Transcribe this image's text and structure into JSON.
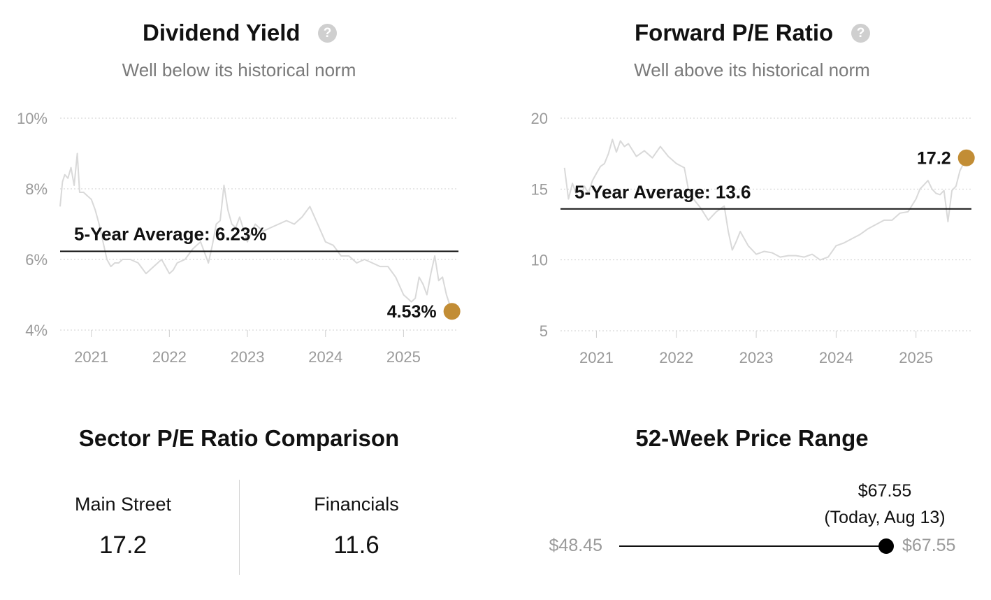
{
  "colors": {
    "accent": "#C28D35",
    "history_line": "#d9d9d9",
    "grid": "#cfcfcf",
    "muted": "#9a9a9a"
  },
  "icons": {
    "help": "question-circle-icon"
  },
  "help_glyph": "?",
  "dividend": {
    "title": "Dividend Yield",
    "subtitle": "Well below its historical norm",
    "average_label": "5-Year Average: 6.23%",
    "current_label": "4.53%"
  },
  "pe": {
    "title": "Forward P/E Ratio",
    "subtitle": "Well above its historical norm",
    "average_label": "5-Year Average: 13.6",
    "current_label": "17.2"
  },
  "sector": {
    "title": "Sector P/E Ratio Comparison",
    "items": [
      {
        "name": "Main Street",
        "value": "17.2"
      },
      {
        "name": "Financials",
        "value": "11.6"
      }
    ]
  },
  "range52": {
    "title": "52-Week Price Range",
    "low_label": "$48.45",
    "high_label": "$67.55",
    "current_price": "$67.55",
    "current_note": "(Today, Aug 13)",
    "low": 48.45,
    "high": 67.55,
    "current": 67.55
  },
  "chart_data": [
    {
      "type": "line",
      "title": "Dividend Yield",
      "subtitle": "Well below its historical norm",
      "y_unit": "%",
      "ylim": [
        4,
        10
      ],
      "yticks": [
        4,
        6,
        8,
        10
      ],
      "ytick_labels": [
        "4%",
        "6%",
        "8%",
        "10%"
      ],
      "xlim": [
        2020.6,
        2025.65
      ],
      "xticks": [
        2021,
        2022,
        2023,
        2024,
        2025
      ],
      "xtick_labels": [
        "2021",
        "2022",
        "2023",
        "2024",
        "2025"
      ],
      "grid": true,
      "average": 6.23,
      "current": {
        "x": 2025.62,
        "y": 4.53
      },
      "series": [
        {
          "x": [
            2020.6,
            2020.63,
            2020.66,
            2020.7,
            2020.74,
            2020.78,
            2020.82,
            2020.85,
            2020.9,
            2020.95,
            2021.0,
            2021.05,
            2021.1,
            2021.15,
            2021.2,
            2021.25,
            2021.3,
            2021.35,
            2021.4,
            2021.5,
            2021.6,
            2021.7,
            2021.8,
            2021.9,
            2022.0,
            2022.05,
            2022.1,
            2022.2,
            2022.3,
            2022.4,
            2022.5,
            2022.55,
            2022.6,
            2022.65,
            2022.7,
            2022.75,
            2022.8,
            2022.85,
            2022.9,
            2023.0,
            2023.1,
            2023.2,
            2023.3,
            2023.4,
            2023.5,
            2023.6,
            2023.7,
            2023.8,
            2023.9,
            2024.0,
            2024.1,
            2024.2,
            2024.3,
            2024.4,
            2024.5,
            2024.6,
            2024.7,
            2024.8,
            2024.9,
            2025.0,
            2025.05,
            2025.1,
            2025.15,
            2025.2,
            2025.25,
            2025.3,
            2025.35,
            2025.4,
            2025.45,
            2025.5,
            2025.55,
            2025.62
          ],
          "y": [
            7.5,
            8.2,
            8.4,
            8.3,
            8.6,
            8.1,
            9.0,
            7.9,
            7.9,
            7.8,
            7.7,
            7.4,
            7.0,
            6.5,
            6.0,
            5.8,
            5.9,
            5.9,
            6.0,
            6.0,
            5.9,
            5.6,
            5.8,
            6.0,
            5.6,
            5.7,
            5.9,
            6.0,
            6.3,
            6.5,
            5.9,
            6.4,
            7.0,
            7.1,
            8.1,
            7.4,
            7.0,
            6.9,
            7.2,
            6.5,
            7.0,
            6.8,
            6.9,
            7.0,
            7.1,
            7.0,
            7.2,
            7.5,
            7.0,
            6.5,
            6.4,
            6.1,
            6.1,
            5.9,
            6.0,
            5.9,
            5.8,
            5.8,
            5.5,
            5.0,
            4.9,
            4.8,
            4.9,
            5.5,
            5.3,
            5.0,
            5.6,
            6.1,
            5.4,
            5.5,
            5.0,
            4.53
          ]
        }
      ]
    },
    {
      "type": "line",
      "title": "Forward P/E Ratio",
      "subtitle": "Well above its historical norm",
      "ylim": [
        5,
        20
      ],
      "yticks": [
        5,
        10,
        15,
        20
      ],
      "ytick_labels": [
        "5",
        "10",
        "15",
        "20"
      ],
      "xlim": [
        2020.55,
        2025.65
      ],
      "xticks": [
        2021,
        2022,
        2023,
        2024,
        2025
      ],
      "xtick_labels": [
        "2021",
        "2022",
        "2023",
        "2024",
        "2025"
      ],
      "grid": true,
      "average": 13.6,
      "current": {
        "x": 2025.63,
        "y": 17.2
      },
      "series": [
        {
          "x": [
            2020.6,
            2020.65,
            2020.7,
            2020.75,
            2020.8,
            2020.85,
            2020.9,
            2020.95,
            2021.0,
            2021.05,
            2021.1,
            2021.15,
            2021.2,
            2021.25,
            2021.3,
            2021.35,
            2021.4,
            2021.5,
            2021.6,
            2021.7,
            2021.8,
            2021.9,
            2022.0,
            2022.1,
            2022.15,
            2022.2,
            2022.3,
            2022.4,
            2022.5,
            2022.6,
            2022.65,
            2022.7,
            2022.75,
            2022.8,
            2022.9,
            2023.0,
            2023.1,
            2023.2,
            2023.3,
            2023.4,
            2023.5,
            2023.6,
            2023.7,
            2023.8,
            2023.9,
            2024.0,
            2024.1,
            2024.2,
            2024.3,
            2024.4,
            2024.5,
            2024.6,
            2024.7,
            2024.8,
            2024.9,
            2025.0,
            2025.05,
            2025.1,
            2025.15,
            2025.2,
            2025.25,
            2025.3,
            2025.35,
            2025.4,
            2025.45,
            2025.5,
            2025.55,
            2025.63
          ],
          "y": [
            16.5,
            14.3,
            15.4,
            14.6,
            14.4,
            15.2,
            14.7,
            15.6,
            16.1,
            16.6,
            16.8,
            17.5,
            18.5,
            17.6,
            18.4,
            18.0,
            18.2,
            17.3,
            17.7,
            17.2,
            18.0,
            17.3,
            16.8,
            16.5,
            15.0,
            14.4,
            13.7,
            12.8,
            13.4,
            13.8,
            12.0,
            10.7,
            11.3,
            12.0,
            11.0,
            10.4,
            10.6,
            10.5,
            10.2,
            10.3,
            10.3,
            10.2,
            10.4,
            10.0,
            10.2,
            11.0,
            11.2,
            11.5,
            11.8,
            12.2,
            12.5,
            12.8,
            12.8,
            13.3,
            13.4,
            14.3,
            15.0,
            15.3,
            15.6,
            15.0,
            14.7,
            14.6,
            14.9,
            12.7,
            14.9,
            15.2,
            16.3,
            17.2
          ]
        }
      ]
    }
  ]
}
